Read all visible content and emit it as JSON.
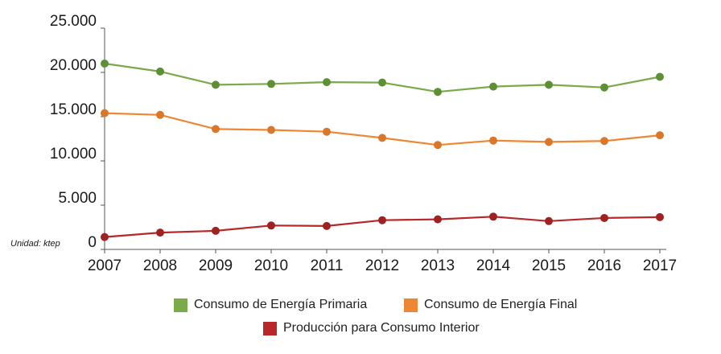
{
  "chart_data": {
    "type": "line",
    "x": [
      "2007",
      "2008",
      "2009",
      "2010",
      "2011",
      "2012",
      "2013",
      "2014",
      "2015",
      "2016",
      "2017"
    ],
    "ylim": [
      0,
      25000
    ],
    "yticks": [
      "0",
      "5.000",
      "10.000",
      "15.000",
      "20.000",
      "25.000"
    ],
    "unit_note": "Unidad: ktep",
    "grid": false,
    "legend_position": "bottom",
    "series": [
      {
        "name": "Consumo de Energía Primaria",
        "color": "#7aaa4a",
        "marker_color": "#5d8f35",
        "values": [
          21000,
          20100,
          18600,
          18700,
          18900,
          18850,
          17800,
          18400,
          18600,
          18300,
          19500
        ]
      },
      {
        "name": "Consumo de Energía Final",
        "color": "#ee8733",
        "marker_color": "#d9772b",
        "values": [
          15400,
          15200,
          13600,
          13500,
          13300,
          12600,
          11800,
          12300,
          12150,
          12250,
          12900
        ]
      },
      {
        "name": "Producción para Consumo Interior",
        "color": "#b82828",
        "marker_color": "#9e2222",
        "values": [
          1400,
          1900,
          2100,
          2700,
          2650,
          3300,
          3400,
          3700,
          3200,
          3550,
          3650
        ]
      }
    ]
  }
}
